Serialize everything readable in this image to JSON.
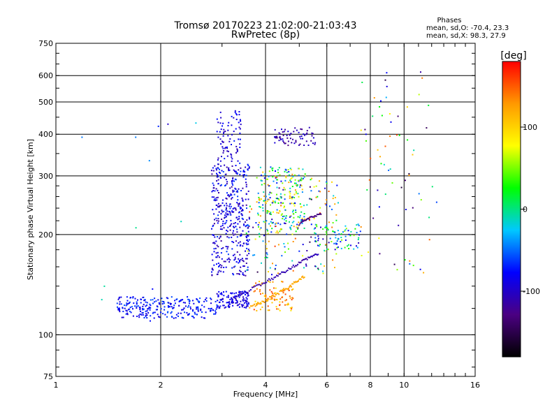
{
  "header": {
    "title_line1": "Tromsø 20170223 21:02:00-21:03:43",
    "title_line2": "RwPretec (8p)"
  },
  "phases": {
    "heading": "Phases",
    "line_o": "mean, sd,O: -70.4, 23.3",
    "line_x": "mean, sd,X:  98.3, 27.9"
  },
  "colorbar": {
    "unit": "[deg]",
    "ticks": [
      "100",
      "0",
      "-100"
    ],
    "tick_values": [
      100,
      0,
      -100
    ],
    "range": [
      -180,
      180
    ],
    "colors": [
      "#000000",
      "#4b0082",
      "#0000ff",
      "#00c8ff",
      "#00ff00",
      "#ffff00",
      "#ff9900",
      "#ff0000"
    ]
  },
  "chart_data": {
    "type": "scatter",
    "xlabel": "Frequency [MHz]",
    "ylabel": "Stationary phase Virtual Height [km]",
    "x_scale": "log",
    "y_scale": "log",
    "xlim": [
      1,
      16
    ],
    "ylim": [
      75,
      750
    ],
    "x_ticks": [
      1,
      2,
      4,
      6,
      8,
      10,
      16
    ],
    "x_tick_labels": [
      "1",
      "2",
      "4",
      "6",
      "8",
      "10",
      "16"
    ],
    "y_ticks": [
      75,
      100,
      200,
      300,
      400,
      500,
      600,
      750
    ],
    "y_tick_labels": [
      "75",
      "100",
      "200",
      "300",
      "400",
      "500",
      "600",
      "750"
    ],
    "grid": true,
    "clusters": [
      {
        "f_range": [
          1.5,
          2.9
        ],
        "h_range": [
          112,
          130
        ],
        "phase_range": [
          -95,
          -55
        ],
        "count": 260
      },
      {
        "f_range": [
          2.9,
          3.6
        ],
        "h_range": [
          120,
          135
        ],
        "phase_range": [
          -110,
          -70
        ],
        "count": 120
      },
      {
        "f_range": [
          2.8,
          3.6
        ],
        "h_range": [
          150,
          330
        ],
        "phase_range": [
          -120,
          -60
        ],
        "count": 420
      },
      {
        "f_range": [
          2.9,
          3.4
        ],
        "h_range": [
          330,
          470
        ],
        "phase_range": [
          -110,
          -70
        ],
        "count": 80
      },
      {
        "f_range": [
          3.8,
          5.2
        ],
        "h_range": [
          200,
          320
        ],
        "phase_range": [
          -80,
          130
        ],
        "count": 220
      },
      {
        "f_range": [
          4.2,
          5.6
        ],
        "h_range": [
          370,
          420
        ],
        "phase_range": [
          -130,
          -90
        ],
        "count": 70
      },
      {
        "f_range": [
          3.7,
          4.8
        ],
        "h_range": [
          118,
          145
        ],
        "phase_range": [
          90,
          160
        ],
        "count": 90
      },
      {
        "f_range": [
          5.5,
          7.5
        ],
        "h_range": [
          180,
          215
        ],
        "phase_range": [
          -110,
          60
        ],
        "count": 80
      },
      {
        "f_range": [
          3.5,
          6.5
        ],
        "h_range": [
          150,
          300
        ],
        "phase_range": [
          -150,
          160
        ],
        "count": 180
      },
      {
        "f_range": [
          7.5,
          13
        ],
        "h_range": [
          150,
          620
        ],
        "phase_range": [
          -160,
          160
        ],
        "count": 70
      },
      {
        "f_range": [
          1.05,
          2.6
        ],
        "h_range": [
          110,
          480
        ],
        "phase_range": [
          -100,
          0
        ],
        "count": 12
      }
    ],
    "traces": [
      {
        "name": "",
        "x": [
          3.2,
          3.7,
          4.2,
          4.7,
          5.2,
          5.7
        ],
        "y": [
          128,
          138,
          148,
          158,
          168,
          176
        ],
        "phase": -110
      },
      {
        "name": "",
        "x": [
          3.6,
          4.0,
          4.4,
          4.8,
          5.2
        ],
        "y": [
          120,
          127,
          134,
          142,
          150
        ],
        "phase": 120
      },
      {
        "name": "",
        "x": [
          5.0,
          5.4,
          5.8
        ],
        "y": [
          215,
          225,
          232
        ],
        "phase": -130
      }
    ],
    "seed": 20170223
  }
}
